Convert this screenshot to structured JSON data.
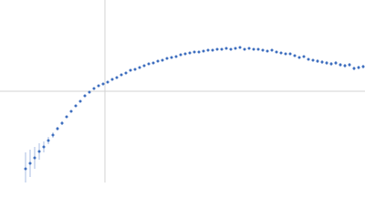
{
  "chart_data": {
    "type": "scatter",
    "color": "#3f6fbf",
    "error_color": "#a9bde3",
    "zero_lines": true,
    "zero_line_color": "#d3d3d3",
    "xlim": [
      -115,
      285
    ],
    "ylim": [
      -100,
      100
    ],
    "x": [
      -87,
      -82,
      -77,
      -72,
      -67,
      -62,
      -57,
      -52,
      -47,
      -42,
      -37,
      -32,
      -27,
      -22,
      -17,
      -12,
      -7,
      -2,
      3,
      8,
      13,
      18,
      23,
      28,
      33,
      38,
      43,
      48,
      53,
      58,
      63,
      68,
      73,
      78,
      83,
      88,
      93,
      98,
      103,
      108,
      113,
      118,
      123,
      128,
      133,
      138,
      143,
      148,
      153,
      158,
      163,
      168,
      173,
      178,
      183,
      188,
      193,
      198,
      203,
      208,
      213,
      218,
      223,
      228,
      233,
      238,
      243,
      248,
      253,
      258,
      263,
      268,
      273,
      278,
      283
    ],
    "values": [
      -85,
      -79,
      -73,
      -66,
      -61,
      -54,
      -48,
      -41,
      -35,
      -28,
      -22,
      -16,
      -11,
      -5,
      -1,
      3,
      6,
      8,
      10,
      13,
      15,
      18,
      20,
      23,
      24,
      26,
      28,
      30,
      31,
      33,
      34,
      36,
      37,
      38,
      40,
      41,
      42,
      43,
      43,
      44,
      45,
      45,
      46,
      46,
      47,
      46,
      47,
      48,
      46,
      47,
      46,
      46,
      45,
      44,
      45,
      43,
      42,
      41,
      41,
      39,
      37,
      38,
      35,
      34,
      33,
      32,
      31,
      30,
      31,
      29,
      28,
      29,
      25,
      26,
      27
    ],
    "errors": [
      18,
      15,
      12,
      9,
      6,
      4,
      3,
      2,
      2,
      1,
      1,
      1,
      1,
      1,
      1,
      1,
      1,
      1,
      1,
      1,
      1,
      1,
      1,
      1,
      1,
      1,
      1,
      1,
      1,
      1,
      1,
      1,
      1,
      1,
      1,
      1,
      1,
      1,
      1,
      1,
      1,
      1,
      1,
      1,
      1,
      1,
      1,
      1,
      1,
      1,
      1,
      1,
      1,
      1,
      1,
      1,
      1,
      1,
      1,
      1,
      1,
      1,
      1,
      1,
      2,
      2,
      2,
      2,
      2,
      2,
      2,
      2,
      2,
      2,
      2
    ]
  }
}
